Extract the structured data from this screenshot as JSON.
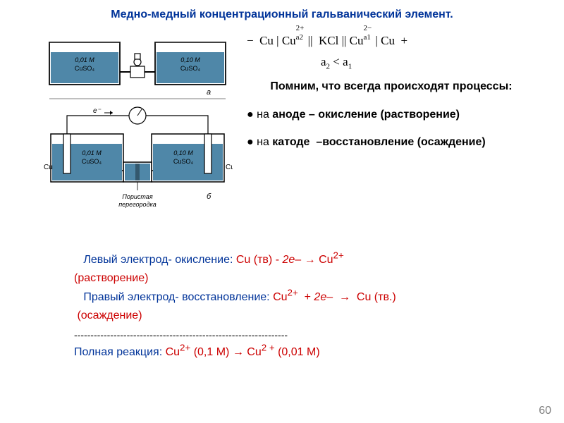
{
  "title": "Медно-медный концентрационный гальванический элемент.",
  "title_color": "#003399",
  "cell_notation_html": "−&nbsp;&nbsp;Cu | Cu<span style='position:relative'><sup style='position:absolute;left:0;top:-0.7em'>2+</sup><sub style='position:absolute;left:0;top:0.45em'>a2</sub></span>&nbsp;&nbsp;&nbsp;&nbsp;|| &nbsp;KCl || Cu<span style='position:relative'><sup style='position:absolute;left:0;top:-0.7em'>2−</sup><sub style='position:absolute;left:0;top:0.45em'>a1</sub></span>&nbsp;&nbsp;&nbsp;&nbsp;| Cu&nbsp;&nbsp;+",
  "cell_condition_html": "a<sub>2</sub> &lt; a<sub>1</sub>",
  "reminder": {
    "heading": "Помним, что всегда происходят процессы:",
    "anode_html": "● на <b>аноде – окисление (растворение)</b>",
    "cathode_html": "● на <b>катоде &nbsp;–восстановление (осаждение)</b>"
  },
  "reactions": {
    "left_label": "Левый электрод- окисление:",
    "left_eq_html": "Cu (тв) - <span class='ital'>2е</span>– → Cu<sup>2+</sup>",
    "left_note": "(растворение)",
    "right_label": "Правый электрод- восстановление:",
    "right_eq_html": "Cu<sup>2+</sup> &nbsp;+ <span class='ital'>2е</span>– &nbsp;→ &nbsp;Cu (тв.)",
    "right_note": "(осаждение)",
    "dashes": "-----------------------------------------------------------------",
    "full_label": "Полная реакция:",
    "full_eq_html": "Cu<sup>2+</sup> (0,1 М) → Cu<sup>2 +</sup> (0,01 М)"
  },
  "diagram": {
    "top": {
      "left_conc": "0,01 M",
      "left_salt": "CuSO₄",
      "right_conc": "0,10 M",
      "right_salt": "CuSO₄",
      "label": "a"
    },
    "bottom": {
      "left_conc": "0,01 M",
      "left_salt": "CuSO₄",
      "right_conc": "0,10 M",
      "right_salt": "CuSO₄",
      "left_electrode": "Cu",
      "right_electrode": "Cu",
      "e_label": "e⁻",
      "membrane": "Пористая перегородка",
      "label": "б"
    },
    "colors": {
      "solution": "#4f87a8",
      "outline": "#1a1a1a",
      "label_text": "#000000",
      "diagram_bg": "#ffffff"
    }
  },
  "page_number": "60"
}
